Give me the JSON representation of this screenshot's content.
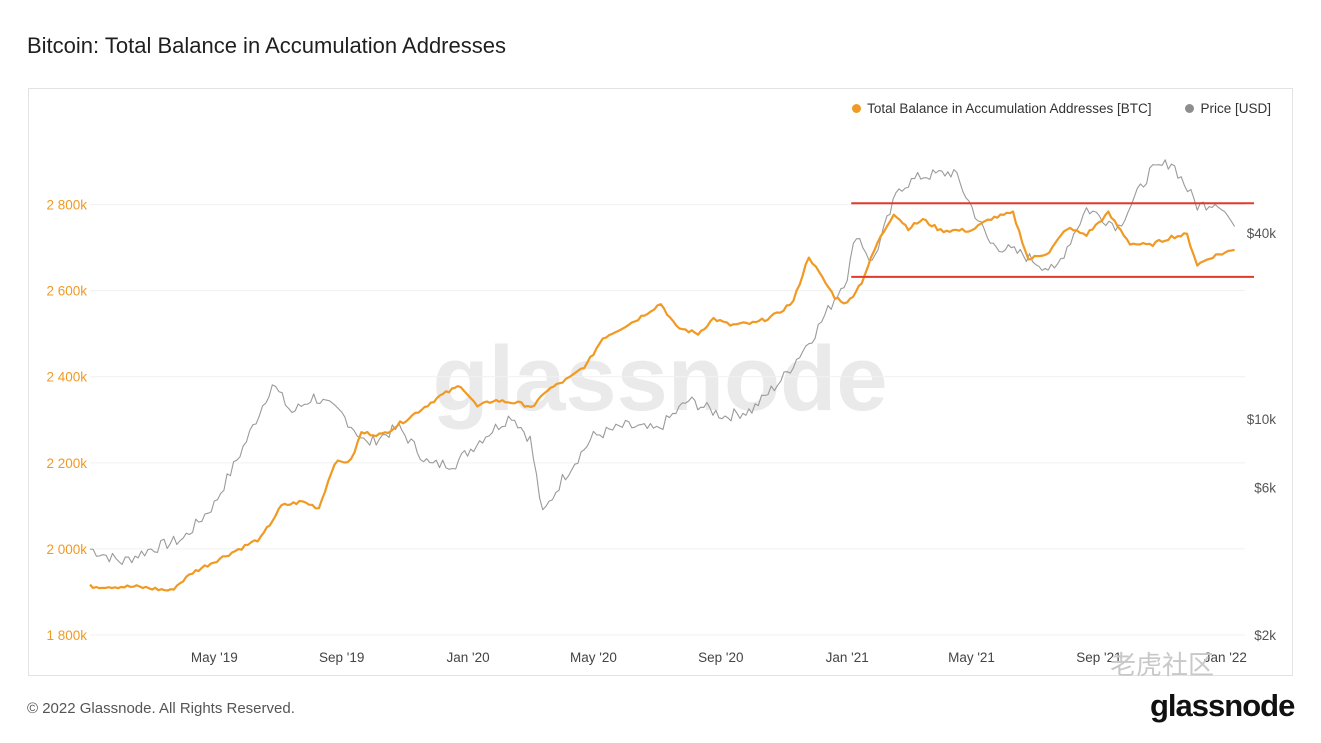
{
  "chart_data": {
    "type": "line",
    "title": "Bitcoin: Total Balance in Accumulation Addresses",
    "x_tick_labels": [
      "May '19",
      "Sep '19",
      "Jan '20",
      "May '20",
      "Sep '20",
      "Jan '21",
      "May '21",
      "Sep '21",
      "Jan '22"
    ],
    "y_left": {
      "tick_labels": [
        "1 800k",
        "2 000k",
        "2 200k",
        "2 400k",
        "2 600k",
        "2 800k"
      ],
      "ylim": [
        1800000,
        2950000
      ],
      "color": "#f09a24"
    },
    "y_right": {
      "scale": "log",
      "tick_labels": [
        "$2k",
        "$6k",
        "$10k",
        "$40k"
      ],
      "tick_values": [
        2000,
        6000,
        10000,
        40000
      ],
      "ylim": [
        2000,
        80000
      ]
    },
    "series": [
      {
        "name": "Total Balance in Accumulation Addresses [BTC]",
        "axis": "left",
        "color": "#f09a24",
        "points": [
          [
            "2019-01-01",
            1913000
          ],
          [
            "2019-02-15",
            1912000
          ],
          [
            "2019-03-20",
            1903000
          ],
          [
            "2019-04-10",
            1945000
          ],
          [
            "2019-05-15",
            1988000
          ],
          [
            "2019-06-15",
            2025000
          ],
          [
            "2019-07-05",
            2100000
          ],
          [
            "2019-07-25",
            2110000
          ],
          [
            "2019-08-10",
            2095000
          ],
          [
            "2019-08-25",
            2200000
          ],
          [
            "2019-09-10",
            2205000
          ],
          [
            "2019-09-20",
            2270000
          ],
          [
            "2019-10-10",
            2265000
          ],
          [
            "2019-11-05",
            2305000
          ],
          [
            "2019-12-05",
            2355000
          ],
          [
            "2019-12-25",
            2380000
          ],
          [
            "2020-01-10",
            2330000
          ],
          [
            "2020-01-25",
            2345000
          ],
          [
            "2020-02-15",
            2340000
          ],
          [
            "2020-03-05",
            2330000
          ],
          [
            "2020-03-15",
            2365000
          ],
          [
            "2020-04-10",
            2400000
          ],
          [
            "2020-04-25",
            2430000
          ],
          [
            "2020-05-10",
            2490000
          ],
          [
            "2020-06-10",
            2530000
          ],
          [
            "2020-07-05",
            2570000
          ],
          [
            "2020-07-20",
            2515000
          ],
          [
            "2020-08-10",
            2500000
          ],
          [
            "2020-08-25",
            2535000
          ],
          [
            "2020-09-10",
            2520000
          ],
          [
            "2020-10-05",
            2525000
          ],
          [
            "2020-10-25",
            2545000
          ],
          [
            "2020-11-10",
            2575000
          ],
          [
            "2020-11-25",
            2680000
          ],
          [
            "2020-12-05",
            2640000
          ],
          [
            "2020-12-20",
            2585000
          ],
          [
            "2021-01-01",
            2570000
          ],
          [
            "2021-01-15",
            2620000
          ],
          [
            "2021-01-30",
            2710000
          ],
          [
            "2021-02-15",
            2780000
          ],
          [
            "2021-03-01",
            2745000
          ],
          [
            "2021-03-15",
            2765000
          ],
          [
            "2021-04-01",
            2740000
          ],
          [
            "2021-05-01",
            2740000
          ],
          [
            "2021-05-20",
            2768000
          ],
          [
            "2021-06-10",
            2780000
          ],
          [
            "2021-06-25",
            2672000
          ],
          [
            "2021-07-15",
            2690000
          ],
          [
            "2021-08-01",
            2745000
          ],
          [
            "2021-08-20",
            2730000
          ],
          [
            "2021-09-10",
            2780000
          ],
          [
            "2021-10-01",
            2710000
          ],
          [
            "2021-10-20",
            2705000
          ],
          [
            "2021-11-10",
            2725000
          ],
          [
            "2021-11-25",
            2730000
          ],
          [
            "2021-12-05",
            2660000
          ],
          [
            "2021-12-20",
            2680000
          ],
          [
            "2022-01-10",
            2695000
          ]
        ]
      },
      {
        "name": "Price [USD]",
        "axis": "right",
        "color": "#9a9a9a",
        "points": [
          [
            "2019-01-01",
            3800
          ],
          [
            "2019-02-01",
            3450
          ],
          [
            "2019-03-01",
            3800
          ],
          [
            "2019-04-01",
            4100
          ],
          [
            "2019-05-01",
            5300
          ],
          [
            "2019-06-01",
            8500
          ],
          [
            "2019-06-26",
            13000
          ],
          [
            "2019-07-15",
            10500
          ],
          [
            "2019-08-05",
            11800
          ],
          [
            "2019-09-01",
            10400
          ],
          [
            "2019-09-25",
            8300
          ],
          [
            "2019-10-26",
            9400
          ],
          [
            "2019-11-25",
            7100
          ],
          [
            "2019-12-20",
            7200
          ],
          [
            "2020-01-15",
            8700
          ],
          [
            "2020-02-12",
            10300
          ],
          [
            "2020-03-01",
            8600
          ],
          [
            "2020-03-13",
            4900
          ],
          [
            "2020-04-01",
            6400
          ],
          [
            "2020-05-01",
            8800
          ],
          [
            "2020-06-01",
            9500
          ],
          [
            "2020-07-01",
            9200
          ],
          [
            "2020-08-01",
            11500
          ],
          [
            "2020-09-05",
            10200
          ],
          [
            "2020-10-01",
            10700
          ],
          [
            "2020-11-01",
            13700
          ],
          [
            "2020-12-01",
            19000
          ],
          [
            "2021-01-01",
            29000
          ],
          [
            "2021-01-10",
            40000
          ],
          [
            "2021-01-25",
            32000
          ],
          [
            "2021-02-20",
            56000
          ],
          [
            "2021-03-13",
            61000
          ],
          [
            "2021-04-14",
            63000
          ],
          [
            "2021-05-19",
            37000
          ],
          [
            "2021-06-20",
            34000
          ],
          [
            "2021-07-20",
            30000
          ],
          [
            "2021-08-20",
            48000
          ],
          [
            "2021-09-20",
            42000
          ],
          [
            "2021-10-20",
            63000
          ],
          [
            "2021-11-10",
            68000
          ],
          [
            "2021-12-05",
            49000
          ],
          [
            "2021-12-25",
            50500
          ],
          [
            "2022-01-10",
            42000
          ]
        ]
      }
    ],
    "annotations": [
      {
        "type": "horizontal-line",
        "color": "#e03b2a",
        "axis": "left",
        "value": 2803000,
        "x_start": "2021-01-01",
        "x_end": "2022-01-15"
      },
      {
        "type": "horizontal-line",
        "color": "#e03b2a",
        "axis": "left",
        "value": 2632000,
        "x_start": "2021-01-01",
        "x_end": "2022-01-15"
      }
    ],
    "legend_position": "top-right",
    "grid": true,
    "watermark": "glassnode"
  },
  "footer": {
    "copyright": "© 2022 Glassnode. All Rights Reserved.",
    "brand": "glassnode"
  },
  "overlay_watermark": "老虎社区"
}
